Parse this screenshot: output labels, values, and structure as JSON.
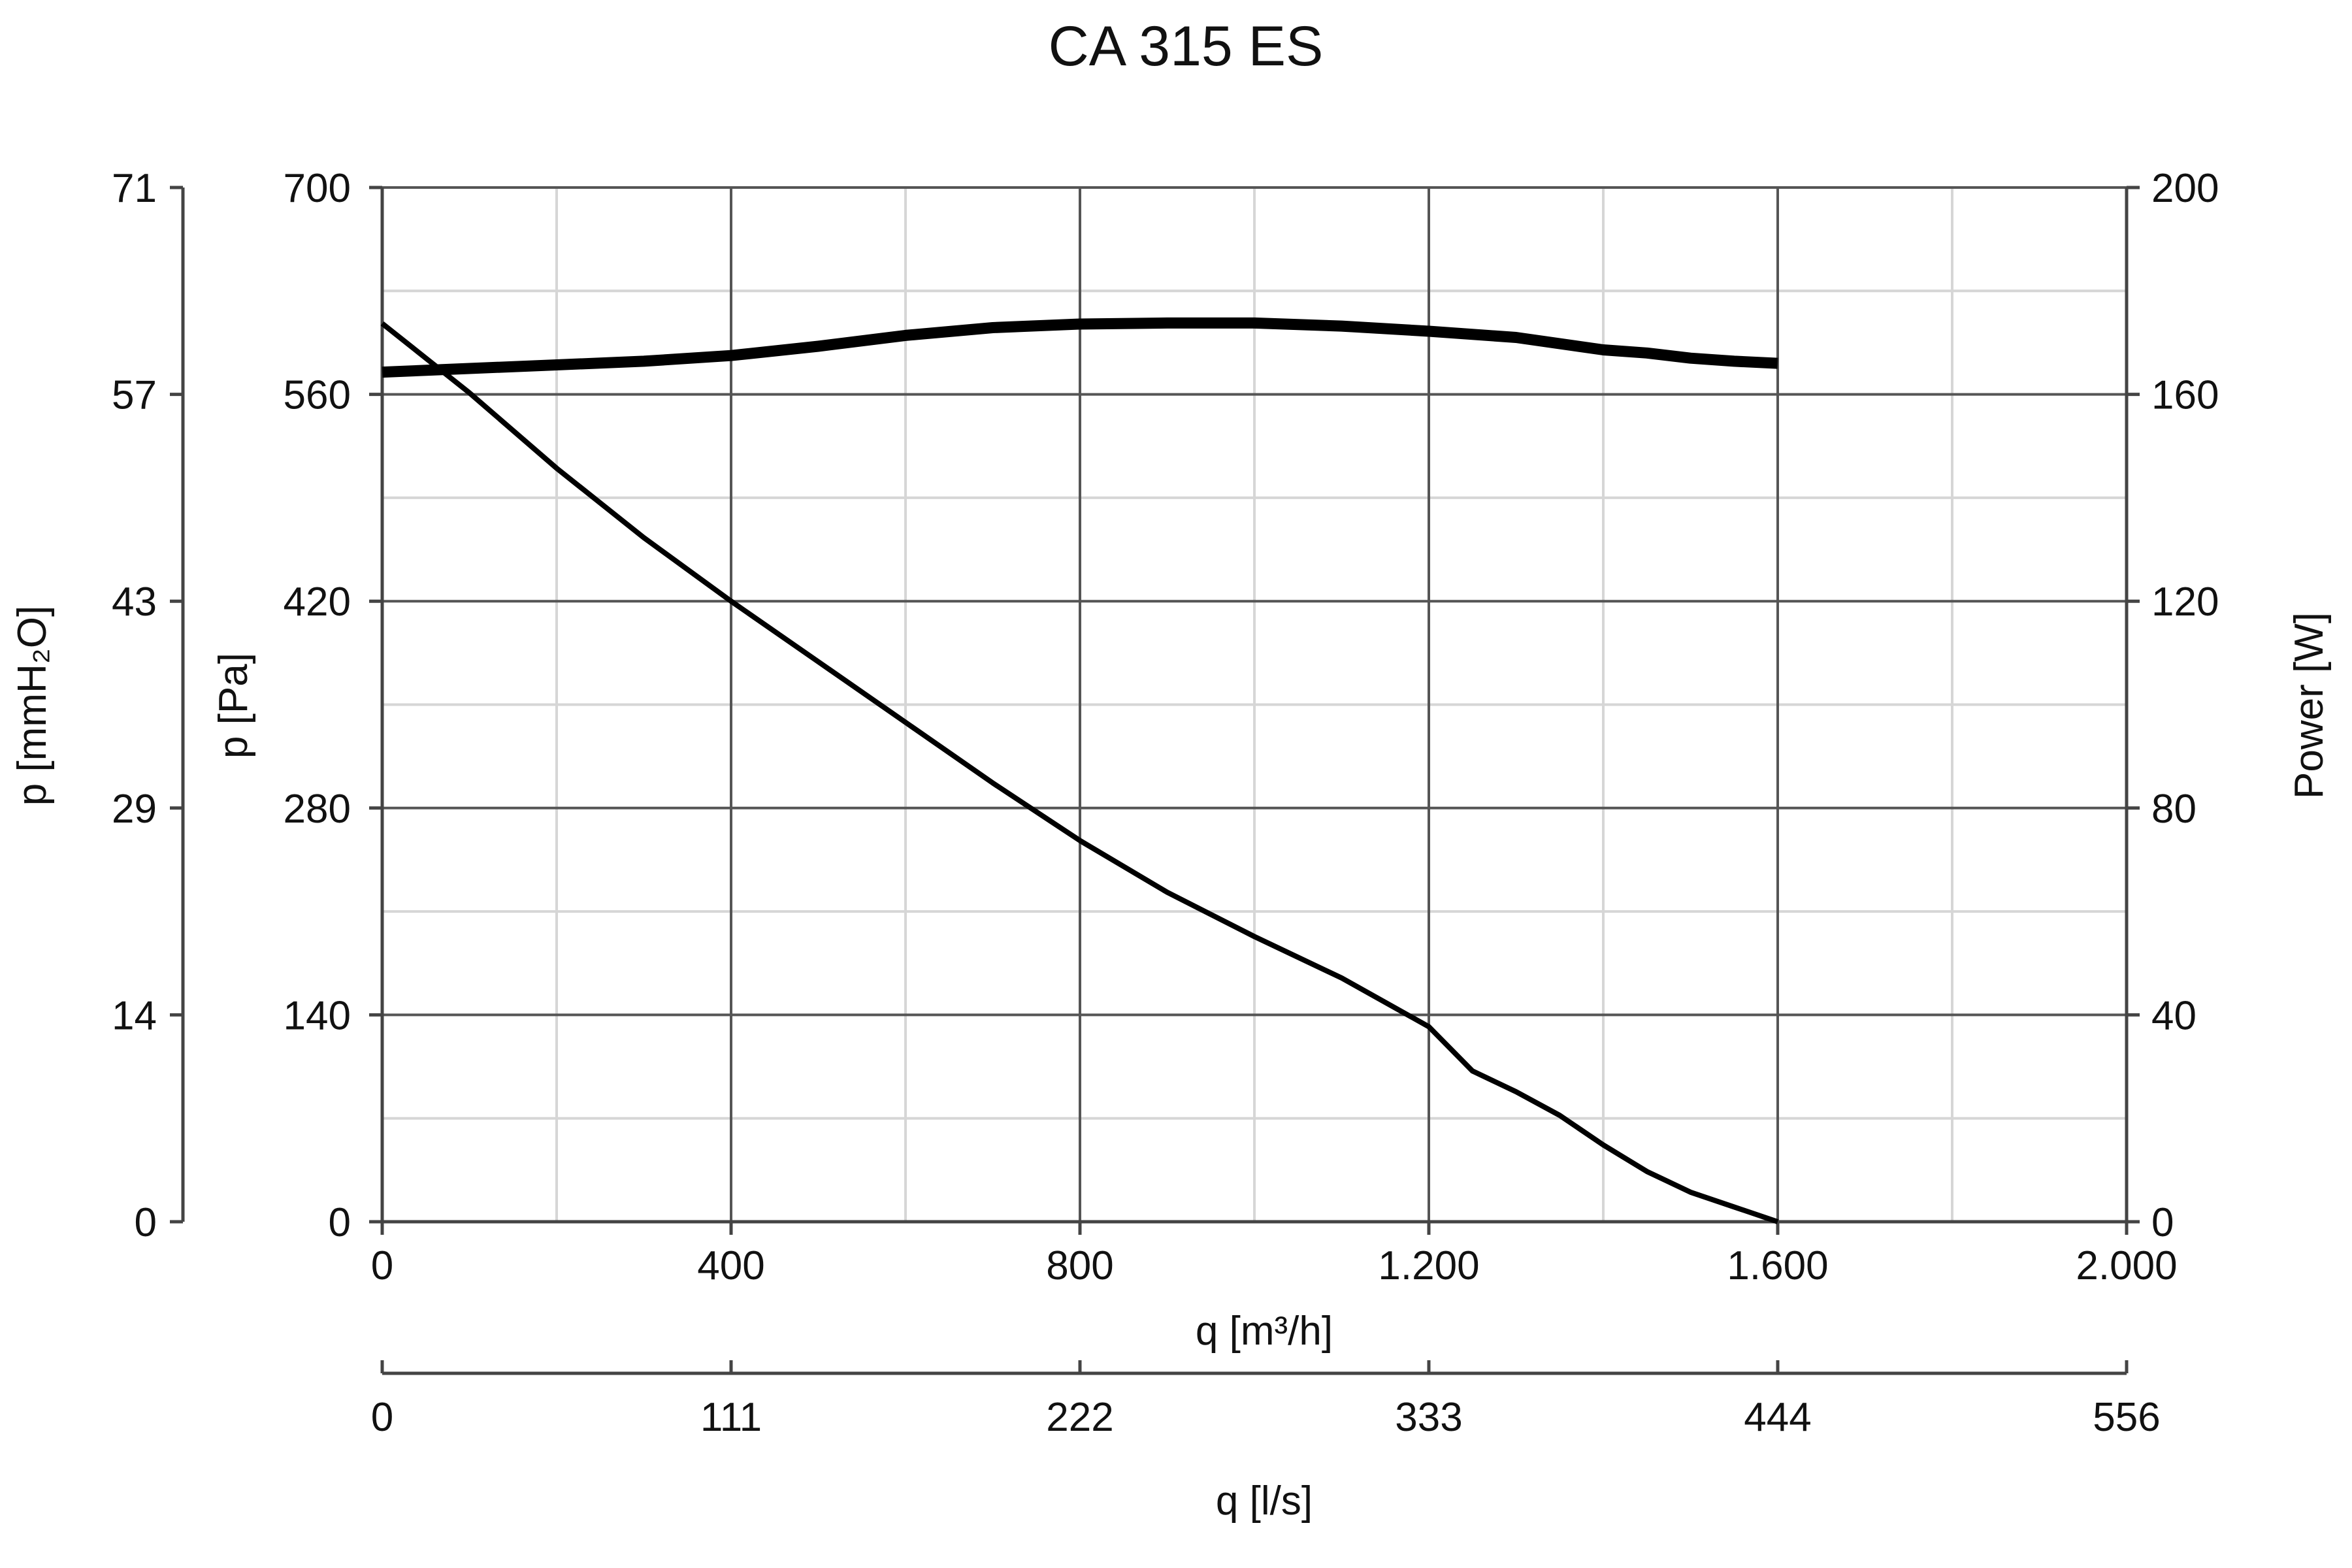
{
  "chart_data": {
    "type": "line",
    "title": "CA 315 ES",
    "x_axis_primary": {
      "label": "q [m³/h]",
      "range": [
        0,
        2000
      ],
      "ticks": [
        0,
        400,
        800,
        1200,
        1600,
        2000
      ],
      "tick_labels": [
        "0",
        "400",
        "800",
        "1.200",
        "1.600",
        "2.000"
      ]
    },
    "x_axis_secondary": {
      "label": "q [l/s]",
      "tick_labels": [
        "0",
        "111",
        "222",
        "333",
        "444",
        "556"
      ]
    },
    "y_axis_left_inner": {
      "label": "p [Pa]",
      "range": [
        0,
        700
      ],
      "ticks": [
        0,
        140,
        280,
        420,
        560,
        700
      ],
      "tick_labels": [
        "0",
        "140",
        "280",
        "420",
        "560",
        "700"
      ]
    },
    "y_axis_left_outer": {
      "label": "p [mmH₂O]",
      "tick_labels": [
        "0",
        "14",
        "29",
        "43",
        "57",
        "71"
      ]
    },
    "y_axis_right": {
      "label": "Power [W]",
      "range": [
        0,
        200
      ],
      "ticks": [
        0,
        40,
        80,
        120,
        160,
        200
      ],
      "tick_labels": [
        "0",
        "40",
        "80",
        "120",
        "160",
        "200"
      ]
    },
    "grid": true,
    "series": [
      {
        "axis": "left",
        "x": [
          0,
          100,
          200,
          300,
          400,
          500,
          600,
          700,
          800,
          900,
          1000,
          1100,
          1200,
          1250,
          1300,
          1350,
          1400,
          1450,
          1500,
          1550,
          1600
        ],
        "y": [
          608,
          561,
          510,
          463,
          420,
          379,
          338,
          297,
          258,
          223,
          193,
          165,
          132,
          102,
          88,
          72,
          52,
          34,
          20,
          10,
          0
        ]
      },
      {
        "axis": "right",
        "x": [
          0,
          100,
          200,
          300,
          400,
          500,
          600,
          700,
          800,
          900,
          1000,
          1100,
          1200,
          1300,
          1400,
          1450,
          1500,
          1550,
          1600
        ],
        "y": [
          164.3,
          165.0,
          165.7,
          166.4,
          167.5,
          169.3,
          171.4,
          172.9,
          173.6,
          173.8,
          173.8,
          173.2,
          172.2,
          171.0,
          168.6,
          168.0,
          167.0,
          166.4,
          166.0
        ]
      }
    ]
  }
}
